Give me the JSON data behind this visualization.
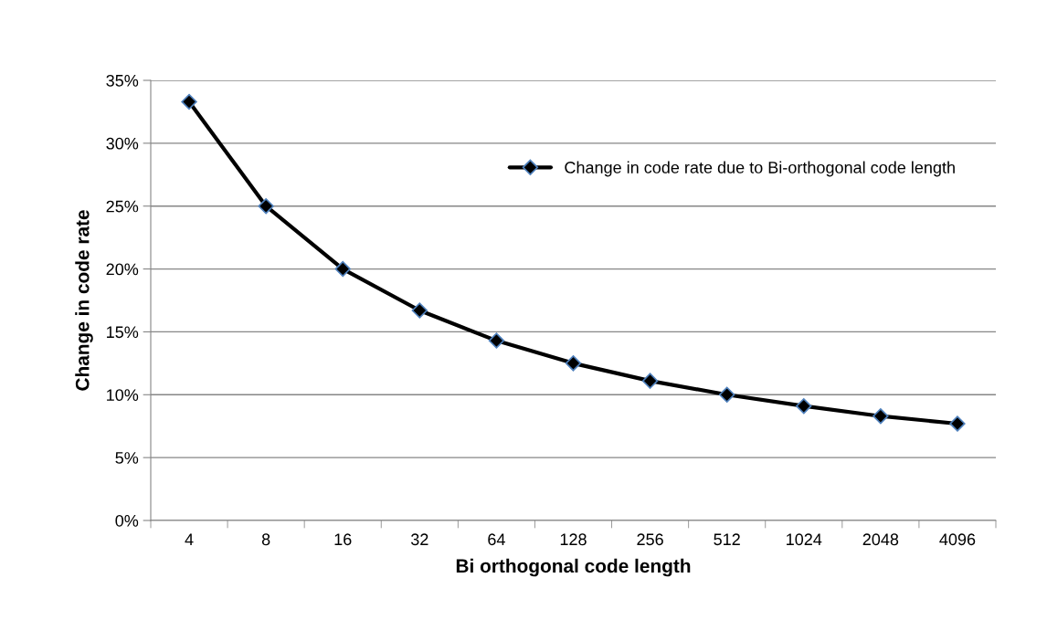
{
  "chart_data": {
    "type": "line",
    "xlabel": "Bi orthogonal code length",
    "ylabel": "Change in code rate",
    "categories": [
      "4",
      "8",
      "16",
      "32",
      "64",
      "128",
      "256",
      "512",
      "1024",
      "2048",
      "4096"
    ],
    "series": [
      {
        "name": "Change in code rate due to Bi-orthogonal code length",
        "color": "#000000",
        "values": [
          33.3,
          25,
          20,
          16.7,
          14.3,
          12.5,
          11.1,
          10,
          9.1,
          8.3,
          7.7
        ]
      }
    ],
    "ylim": [
      0,
      35
    ],
    "yticks": [
      {
        "value": 0,
        "label": "0%"
      },
      {
        "value": 5,
        "label": "5%"
      },
      {
        "value": 10,
        "label": "10%"
      },
      {
        "value": 15,
        "label": "15%"
      },
      {
        "value": 20,
        "label": "20%"
      },
      {
        "value": 25,
        "label": "25%"
      },
      {
        "value": 30,
        "label": "30%"
      },
      {
        "value": 35,
        "label": "35%"
      }
    ],
    "grid": "y",
    "legend": "top right",
    "marker": "diamond",
    "line_style": "solid"
  }
}
